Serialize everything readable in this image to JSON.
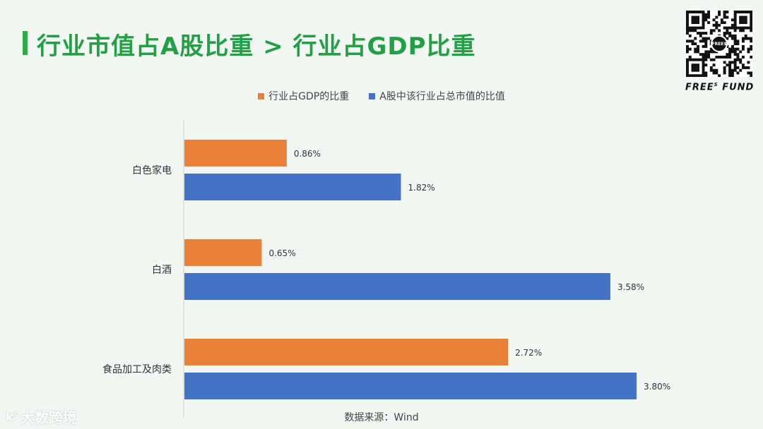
{
  "title": "行业市值占A股比重 > 行业占GDP比重",
  "brand": {
    "name_left": "FREE",
    "name_sup": "S",
    "name_right": " FUND",
    "qr_badge": "FREE$"
  },
  "source": "数据来源：Wind",
  "watermark": {
    "logo": "lc°",
    "text": "大数跨境"
  },
  "colors": {
    "title": "#23a046",
    "series_gdp": "#e8813a",
    "series_mktcap": "#4472c4"
  },
  "chart_data": {
    "type": "bar",
    "orientation": "horizontal",
    "categories": [
      "白色家电",
      "白酒",
      "食品加工及肉类"
    ],
    "series": [
      {
        "name": "行业占GDP的比重",
        "values": [
          0.86,
          0.65,
          2.72
        ],
        "labels": [
          "0.86%",
          "0.65%",
          "2.72%"
        ],
        "color": "#e8813a"
      },
      {
        "name": "A股中该行业占总市值的比值",
        "values": [
          1.82,
          3.58,
          3.8
        ],
        "labels": [
          "1.82%",
          "3.58%",
          "3.80%"
        ],
        "color": "#4472c4"
      }
    ],
    "xlim": [
      0,
      3.8
    ],
    "unit": "%",
    "grid": false,
    "legend_position": "top-center"
  }
}
